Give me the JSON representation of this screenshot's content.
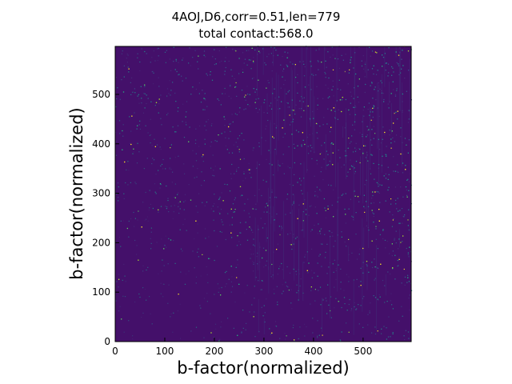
{
  "chart_data": {
    "type": "heatmap",
    "title": "4AOJ,D6,corr=0.51,len=779",
    "subtitle": "total contact:568.0",
    "xlabel": "b-factor(normalized)",
    "ylabel": "b-factor(normalized)",
    "xlim": [
      0,
      597
    ],
    "ylim": [
      0,
      597
    ],
    "x_ticks": [
      0,
      100,
      200,
      300,
      400,
      500
    ],
    "y_ticks": [
      0,
      100,
      200,
      300,
      400,
      500
    ],
    "tick_labels": [
      "0",
      "100",
      "200",
      "300",
      "400",
      "500"
    ],
    "colormap": "viridis",
    "background_color": "#44106a",
    "grid": false,
    "legend": "none"
  }
}
